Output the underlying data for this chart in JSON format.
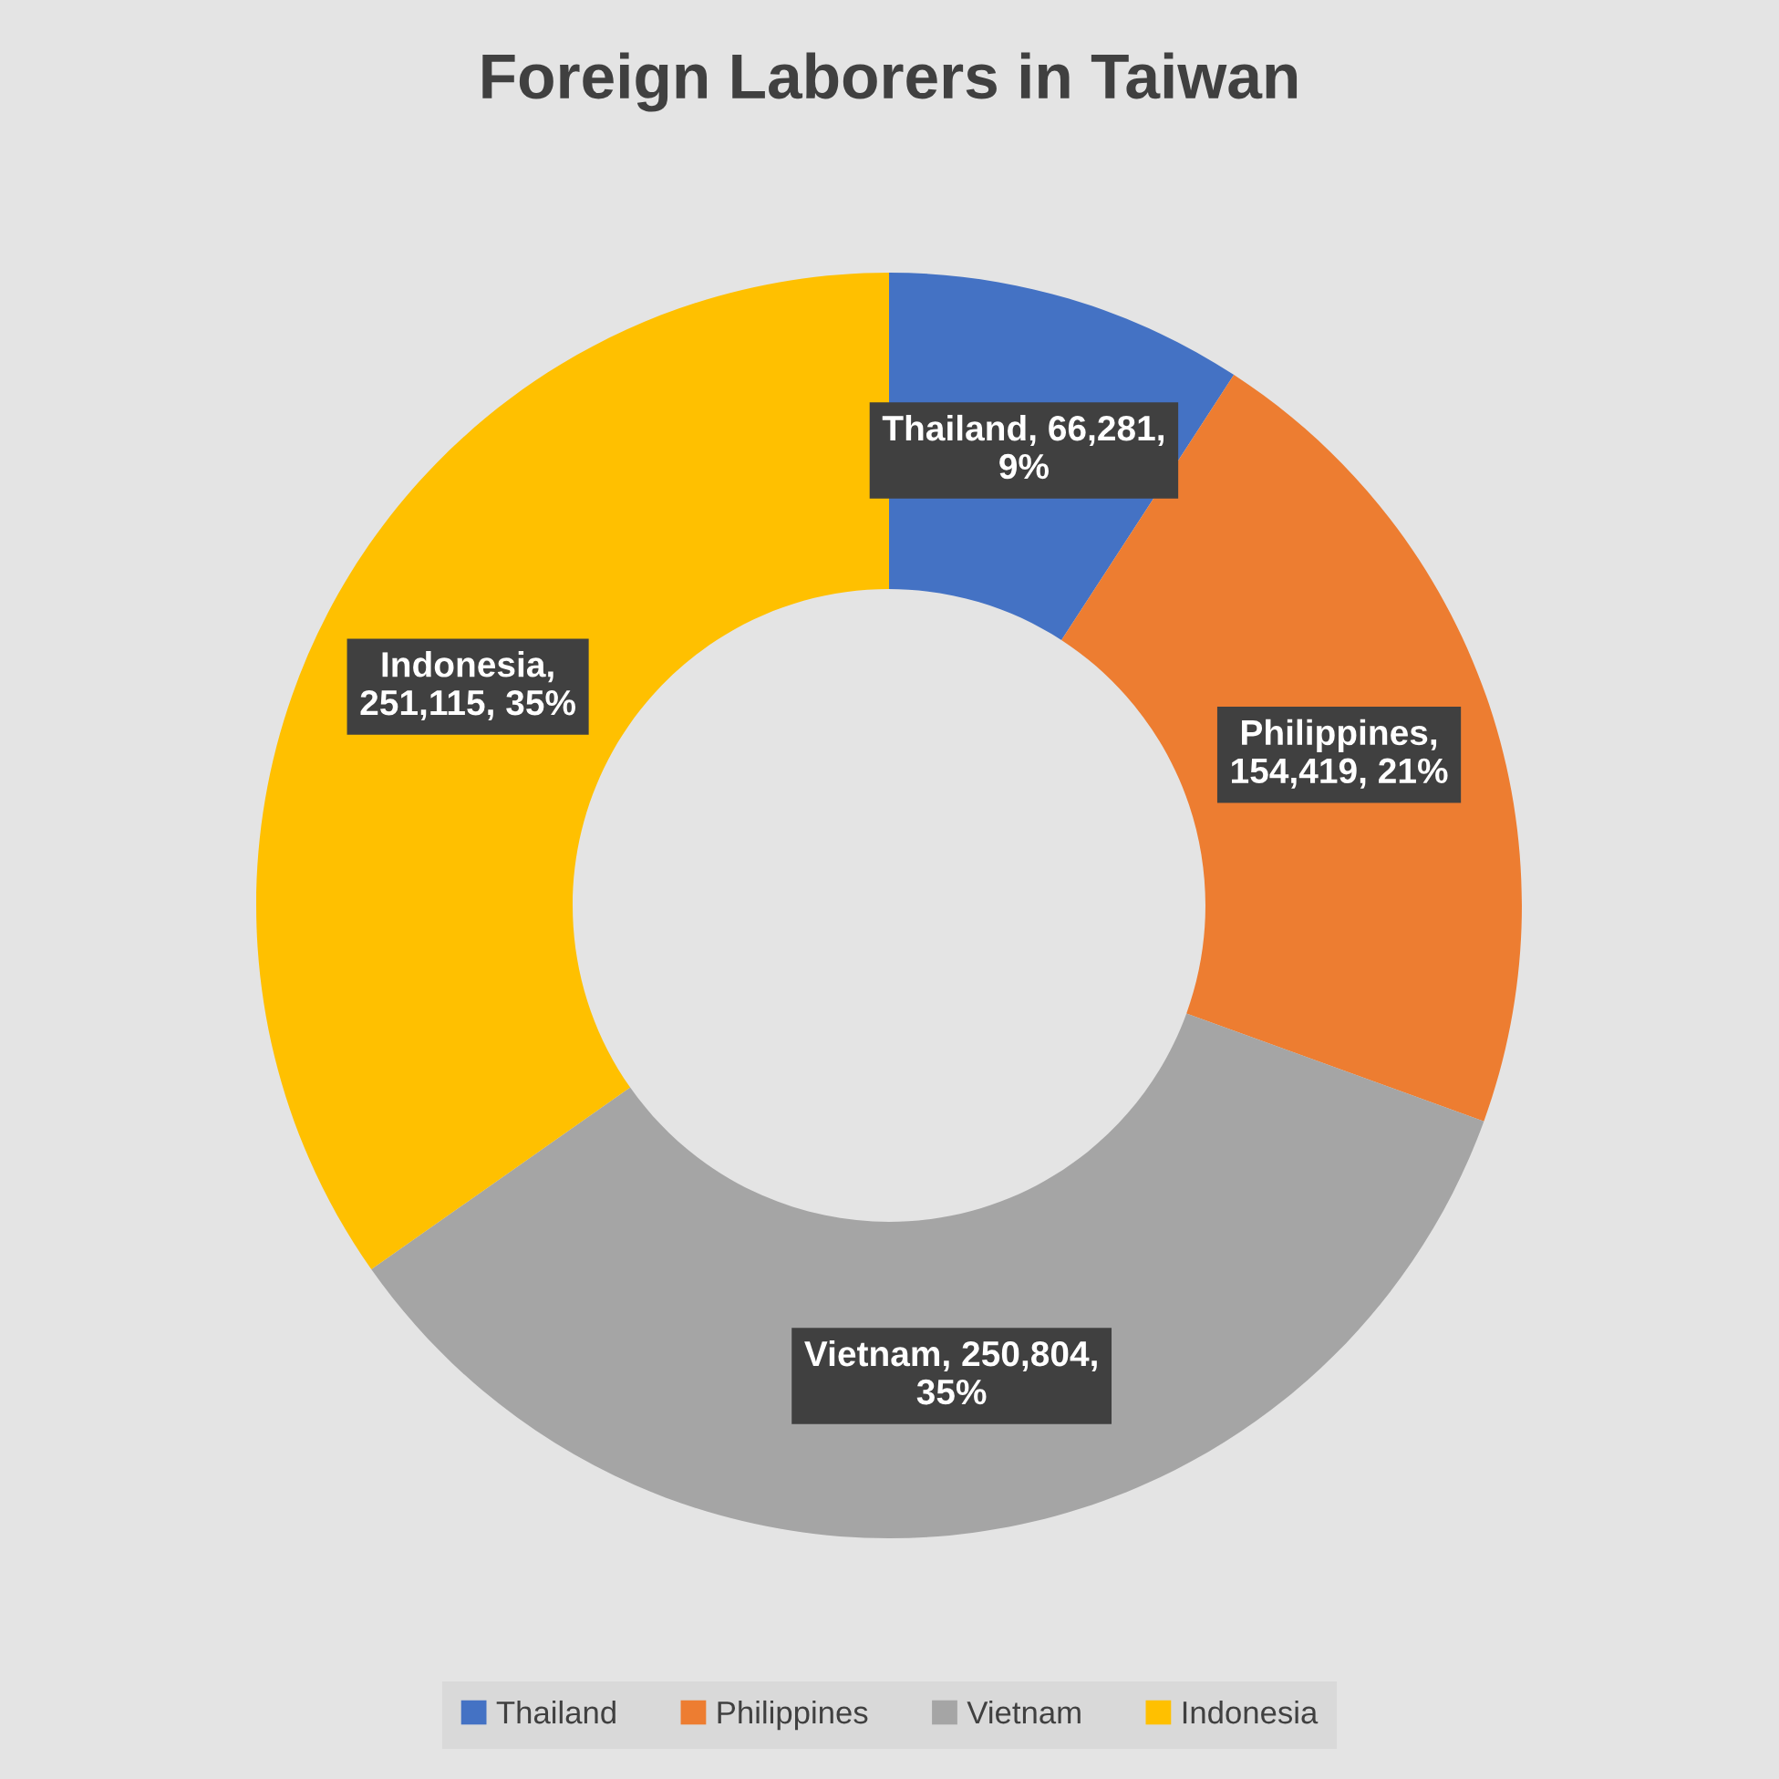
{
  "chart_data": {
    "type": "donut",
    "title": "Foreign Laborers in Taiwan",
    "categories": [
      "Thailand",
      "Philippines",
      "Vietnam",
      "Indonesia"
    ],
    "values": [
      66281,
      154419,
      250804,
      251115
    ],
    "colors": [
      "#4472c4",
      "#ed7d31",
      "#a5a5a5",
      "#ffc000"
    ],
    "value_labels": [
      "Thailand, 66,281, 9%",
      "Philippines, 154,419, 21%",
      "Vietnam, 250,804, 35%",
      "Indonesia, 251,115, 35%"
    ],
    "legend": "bottom"
  }
}
